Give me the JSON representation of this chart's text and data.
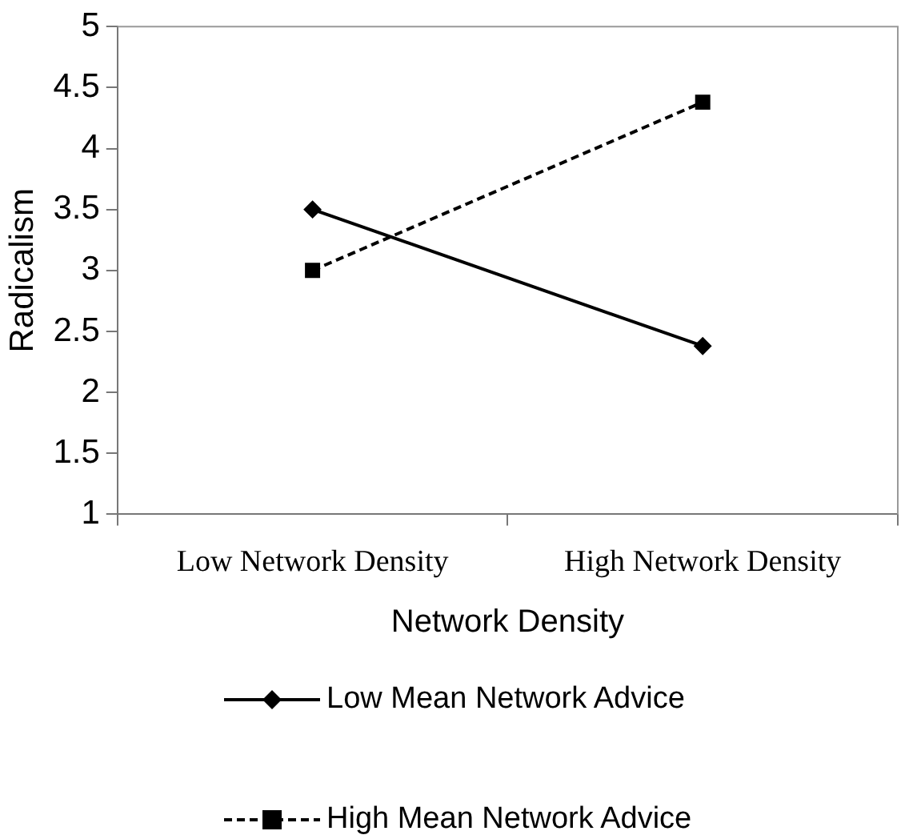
{
  "chart_data": {
    "type": "line",
    "xlabel": "Network Density",
    "ylabel": "Radicalism",
    "categories": [
      "Low Network Density",
      "High Network Density"
    ],
    "series": [
      {
        "name": "Low Mean Network Advice",
        "color": "#000000",
        "values": [
          3.5,
          2.38
        ],
        "marker": "diamond",
        "line_style": "solid"
      },
      {
        "name": "High Mean Network Advice",
        "color": "#000000",
        "values": [
          3.0,
          4.38
        ],
        "marker": "square",
        "line_style": "dashed"
      }
    ],
    "ylim": [
      1,
      5
    ],
    "yticks": [
      1,
      1.5,
      2,
      2.5,
      3,
      3.5,
      4,
      4.5,
      5
    ],
    "grid": false,
    "legend": "bottom"
  }
}
